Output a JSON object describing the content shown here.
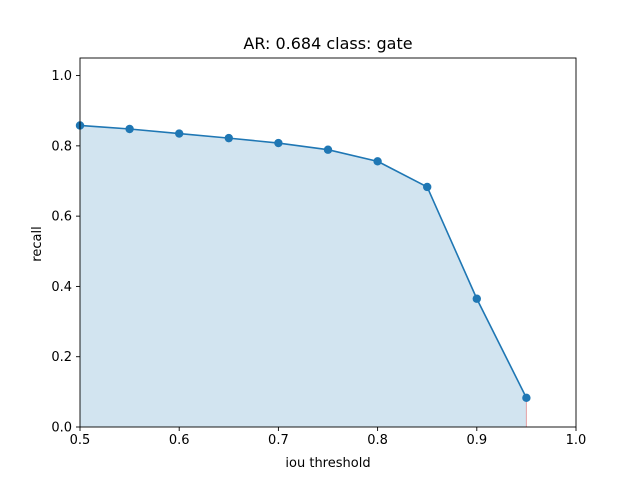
{
  "chart_data": {
    "type": "area",
    "title": "AR: 0.684 class: gate",
    "xlabel": "iou threshold",
    "ylabel": "recall",
    "xlim": [
      0.5,
      1.0
    ],
    "ylim": [
      0.0,
      1.05
    ],
    "xticks": [
      0.5,
      0.6,
      0.7,
      0.8,
      0.9,
      1.0
    ],
    "xtick_labels": [
      "0.5",
      "0.6",
      "0.7",
      "0.8",
      "0.9",
      "1.0"
    ],
    "yticks": [
      0.0,
      0.2,
      0.4,
      0.6,
      0.8,
      1.0
    ],
    "ytick_labels": [
      "0.0",
      "0.2",
      "0.4",
      "0.6",
      "0.8",
      "1.0"
    ],
    "grid": false,
    "series": [
      {
        "x": [
          0.5,
          0.55,
          0.6,
          0.65,
          0.7,
          0.75,
          0.8,
          0.85,
          0.9,
          0.95
        ],
        "y": [
          0.858,
          0.848,
          0.835,
          0.822,
          0.808,
          0.789,
          0.756,
          0.683,
          0.365,
          0.083
        ],
        "color": "#1f77b4",
        "fill_color": "#1f77b4",
        "fill_opacity": 0.2,
        "marker": "circle"
      }
    ],
    "end_marker_color": "#d62728"
  }
}
